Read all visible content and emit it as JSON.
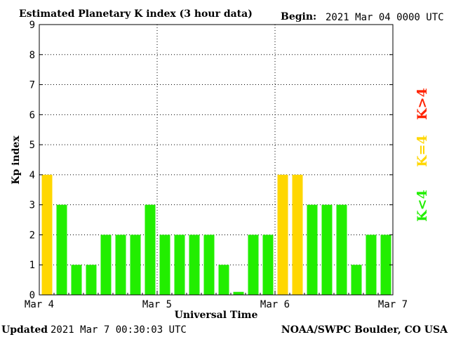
{
  "header": {
    "title": "Estimated Planetary K index (3 hour data)",
    "begin_label": "Begin:",
    "begin_value": "2021 Mar 04 0000 UTC"
  },
  "footer": {
    "updated_label": "Updated",
    "updated_value": "2021 Mar  7 00:30:03 UTC",
    "source": "NOAA/SWPC Boulder, CO USA"
  },
  "legend": {
    "storm": "K>4",
    "moderate": "K=4",
    "quiet": "K<4"
  },
  "colors": {
    "quiet": "#22ee00",
    "moderate": "#ffd700",
    "storm": "#ff2200"
  },
  "chart_data": {
    "type": "bar",
    "title": "Estimated Planetary K index (3 hour data)",
    "xlabel": "Universal Time",
    "ylabel": "Kp index",
    "ylim": [
      0,
      9
    ],
    "yticks": [
      "0",
      "1",
      "2",
      "3",
      "4",
      "5",
      "6",
      "7",
      "8",
      "9"
    ],
    "xticks": [
      "Mar 4",
      "Mar 5",
      "Mar 6",
      "Mar 7"
    ],
    "grid": true,
    "values": [
      4,
      3,
      1,
      1,
      2,
      2,
      2,
      3,
      2,
      2,
      2,
      2,
      1,
      0.1,
      2,
      2,
      4,
      4,
      3,
      3,
      3,
      1,
      2,
      2
    ]
  }
}
